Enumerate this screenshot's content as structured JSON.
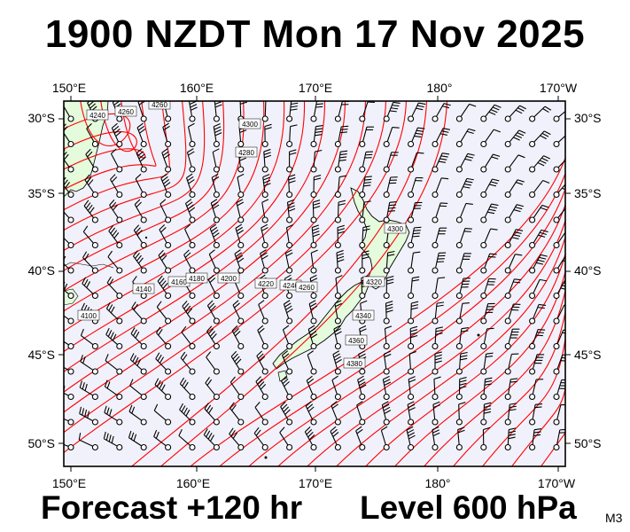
{
  "title": "1900 NZDT Mon 17 Nov 2025",
  "forecast": "Forecast +120 hr",
  "level": "Level 600 hPa",
  "model": "M3",
  "map": {
    "lon_labels": [
      "150°E",
      "160°E",
      "170°E",
      "180°",
      "170°W"
    ],
    "lat_labels": [
      "30°S",
      "35°S",
      "40°S",
      "45°S",
      "50°S"
    ],
    "contour_labels": [
      "4260",
      "4260",
      "4240",
      "4300",
      "4280",
      "4140",
      "4100",
      "4160",
      "4180",
      "4200",
      "4220",
      "4240",
      "4260",
      "4300",
      "4320",
      "4340",
      "4360",
      "4380"
    ],
    "colors": {
      "ocean": "#f1f1fb",
      "land": "#e4fbdc",
      "contour": "#ff0000",
      "frame": "#000000"
    }
  }
}
